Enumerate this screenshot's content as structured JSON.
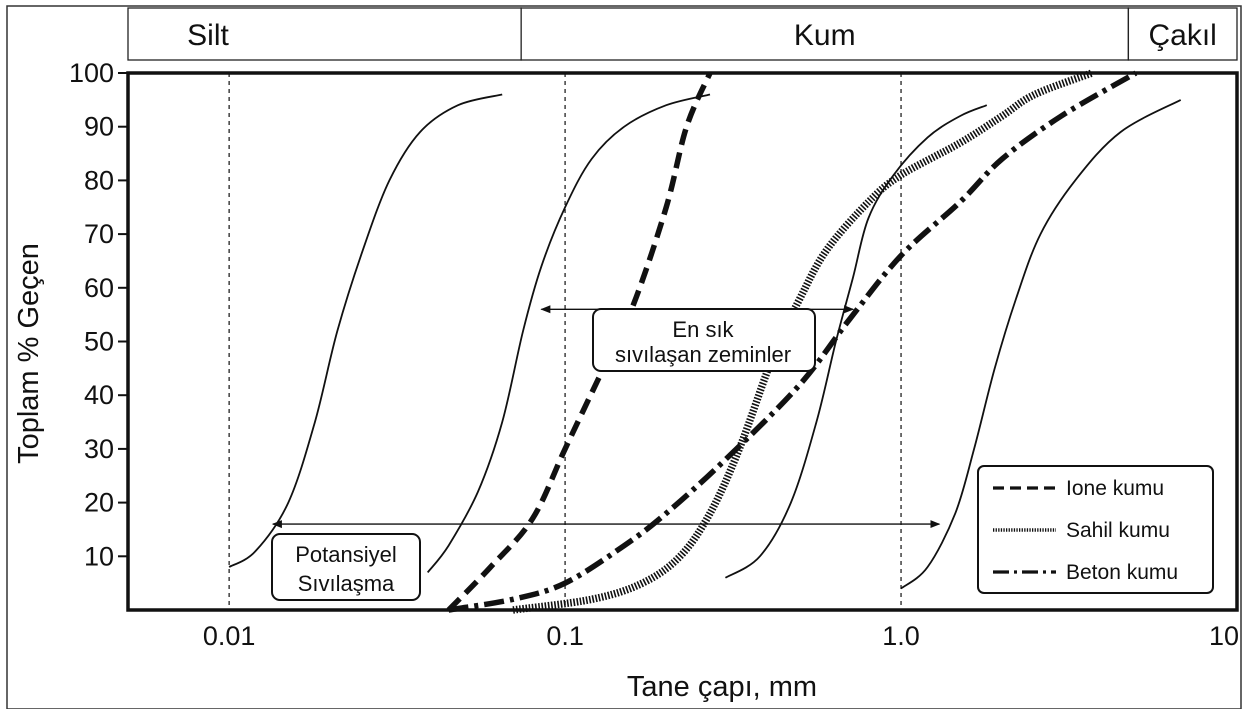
{
  "chart_data": {
    "type": "line",
    "x_scale": "log",
    "xlim": [
      0.005,
      10
    ],
    "ylim": [
      0,
      100
    ],
    "xlabel": "Tane çapı, mm",
    "ylabel": "Toplam % Geçen",
    "x_ticks": [
      {
        "value": 0.01,
        "label": "0.01"
      },
      {
        "value": 0.1,
        "label": "0.1"
      },
      {
        "value": 1.0,
        "label": "1.0"
      },
      {
        "value": 10,
        "label": "10"
      }
    ],
    "y_ticks": [
      10,
      20,
      30,
      40,
      50,
      60,
      70,
      80,
      90,
      100
    ],
    "vertical_gridlines": [
      0.01,
      0.1,
      1.0
    ],
    "grain_size_zones": [
      {
        "label": "Silt",
        "from": 0.005,
        "to": 0.074
      },
      {
        "label": "Kum",
        "from": 0.074,
        "to": 4.75
      },
      {
        "label": "Çakıl",
        "from": 4.75,
        "to": 10
      }
    ],
    "series": [
      {
        "name": "Ione kumu",
        "style": "dashed",
        "points": [
          [
            0.045,
            0
          ],
          [
            0.06,
            8
          ],
          [
            0.08,
            17
          ],
          [
            0.1,
            30
          ],
          [
            0.13,
            45
          ],
          [
            0.16,
            57
          ],
          [
            0.2,
            75
          ],
          [
            0.23,
            90
          ],
          [
            0.27,
            100
          ]
        ]
      },
      {
        "name": "Sahil kumu",
        "style": "dotted",
        "points": [
          [
            0.07,
            0
          ],
          [
            0.12,
            2
          ],
          [
            0.17,
            5
          ],
          [
            0.22,
            10
          ],
          [
            0.27,
            18
          ],
          [
            0.33,
            30
          ],
          [
            0.42,
            48
          ],
          [
            0.5,
            58
          ],
          [
            0.6,
            67
          ],
          [
            0.8,
            76
          ],
          [
            1.0,
            81
          ],
          [
            1.5,
            87
          ],
          [
            2.0,
            92
          ],
          [
            2.5,
            96
          ],
          [
            3.7,
            100
          ]
        ]
      },
      {
        "name": "Beton kumu",
        "style": "dash-dot",
        "points": [
          [
            0.045,
            0
          ],
          [
            0.07,
            2
          ],
          [
            0.1,
            5
          ],
          [
            0.15,
            12
          ],
          [
            0.2,
            18
          ],
          [
            0.3,
            28
          ],
          [
            0.5,
            42
          ],
          [
            0.7,
            54
          ],
          [
            1.0,
            66
          ],
          [
            1.5,
            76
          ],
          [
            2.0,
            84
          ],
          [
            3.0,
            92
          ],
          [
            5.0,
            100
          ]
        ]
      }
    ],
    "envelopes": [
      {
        "role": "potansiyel-sol",
        "points": [
          [
            0.01,
            8
          ],
          [
            0.012,
            11
          ],
          [
            0.015,
            20
          ],
          [
            0.018,
            35
          ],
          [
            0.021,
            52
          ],
          [
            0.025,
            67
          ],
          [
            0.03,
            80
          ],
          [
            0.037,
            89
          ],
          [
            0.048,
            94
          ],
          [
            0.065,
            96
          ]
        ]
      },
      {
        "role": "en-sik-sol",
        "points": [
          [
            0.039,
            7
          ],
          [
            0.045,
            12
          ],
          [
            0.055,
            22
          ],
          [
            0.065,
            35
          ],
          [
            0.075,
            52
          ],
          [
            0.085,
            64
          ],
          [
            0.1,
            75
          ],
          [
            0.12,
            84
          ],
          [
            0.15,
            90
          ],
          [
            0.2,
            94
          ],
          [
            0.27,
            96
          ]
        ]
      },
      {
        "role": "en-sik-sag",
        "points": [
          [
            0.3,
            6
          ],
          [
            0.38,
            10
          ],
          [
            0.47,
            20
          ],
          [
            0.56,
            35
          ],
          [
            0.64,
            50
          ],
          [
            0.72,
            62
          ],
          [
            0.8,
            73
          ],
          [
            0.95,
            81
          ],
          [
            1.2,
            88
          ],
          [
            1.5,
            92
          ],
          [
            1.8,
            94
          ]
        ]
      },
      {
        "role": "potansiyel-sag",
        "points": [
          [
            1.0,
            4
          ],
          [
            1.2,
            8
          ],
          [
            1.45,
            18
          ],
          [
            1.65,
            30
          ],
          [
            1.9,
            45
          ],
          [
            2.2,
            58
          ],
          [
            2.6,
            70
          ],
          [
            3.3,
            80
          ],
          [
            4.5,
            89
          ],
          [
            6.8,
            95
          ]
        ]
      }
    ],
    "annotations": [
      {
        "id": "most-liquefiable",
        "text_lines": [
          "En sık",
          "sıvılaşan zeminler"
        ],
        "range": [
          0.085,
          0.72
        ],
        "y": 56
      },
      {
        "id": "potential-liquefaction",
        "text_lines": [
          "Potansiyel",
          "Sıvılaşma"
        ],
        "range": [
          0.0135,
          1.3
        ],
        "y": 16
      }
    ],
    "legend": {
      "position": "bottom-right"
    }
  }
}
